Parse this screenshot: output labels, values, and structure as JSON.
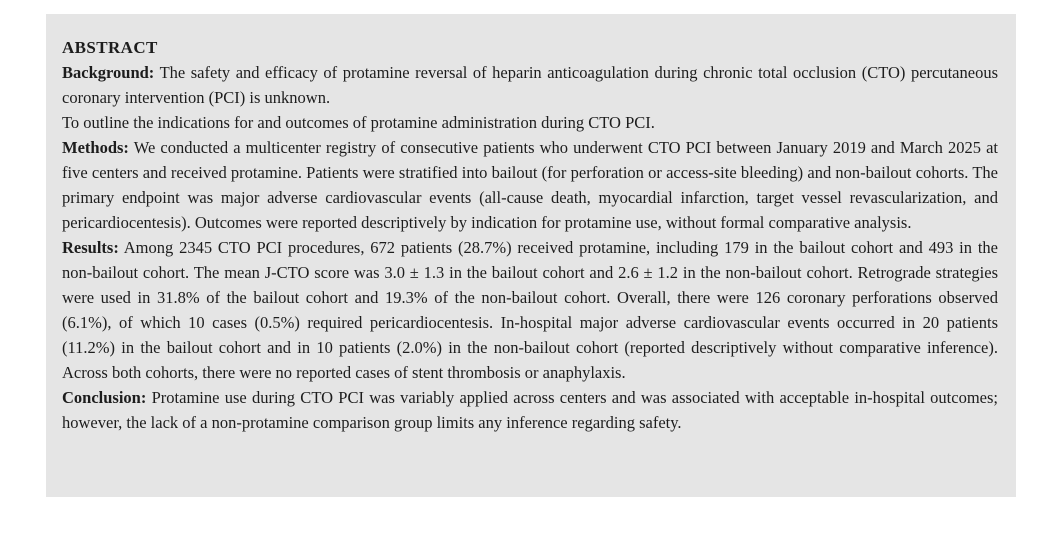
{
  "abstract": {
    "heading": "ABSTRACT",
    "paragraphs": [
      {
        "label": "Background:",
        "text": "The safety and efficacy of protamine reversal of heparin anticoagulation during chronic total occlusion (CTO) percutaneous coronary intervention (PCI) is unknown."
      },
      {
        "label": "",
        "text": "To outline the indications for and outcomes of protamine administration during CTO PCI."
      },
      {
        "label": "Methods:",
        "text": "We conducted a multicenter registry of consecutive patients who underwent CTO PCI between January 2019 and March 2025 at five centers and received protamine. Patients were stratified into bailout (for perforation or access-site bleeding) and non-bailout cohorts. The primary endpoint was major adverse cardiovascular events (all-cause death, myocardial infarction, target vessel revascularization, and pericardiocentesis). Outcomes were reported descriptively by indication for protamine use, without formal comparative analysis."
      },
      {
        "label": "Results:",
        "text": "Among 2345 CTO PCI procedures, 672 patients (28.7%) received protamine, including 179 in the bailout cohort and 493 in the non-bailout cohort. The mean J-CTO score was 3.0 ± 1.3 in the bailout cohort and 2.6 ± 1.2 in the non-bailout cohort. Retrograde strategies were used in 31.8% of the bailout cohort and 19.3% of the non-bailout cohort. Overall, there were 126 coronary perforations observed (6.1%), of which 10 cases (0.5%) required pericardiocentesis. In-hospital major adverse cardiovascular events occurred in 20 patients (11.2%) in the bailout cohort and in 10 patients (2.0%) in the non-bailout cohort (reported descriptively without comparative inference). Across both cohorts, there were no reported cases of stent thrombosis or anaphylaxis."
      },
      {
        "label": "Conclusion:",
        "text": "Protamine use during CTO PCI was variably applied across centers and was associated with acceptable in-hospital outcomes; however, the lack of a non-protamine comparison group limits any inference regarding safety."
      }
    ]
  },
  "colors": {
    "panel_bg": "#e5e5e5",
    "page_bg": "#ffffff",
    "text": "#1d1d1d"
  }
}
